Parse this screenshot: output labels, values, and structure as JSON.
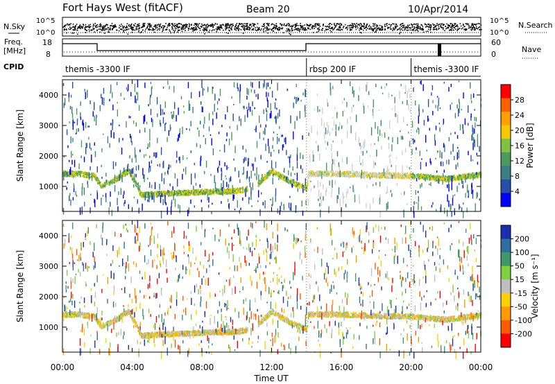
{
  "header": {
    "title": "Fort Hays West (fitACF)",
    "beam": "Beam 20",
    "date": "10/Apr/2014"
  },
  "strips": {
    "nsky_label": "N.Sky",
    "nsky_ticks": [
      "10^5",
      "10^0"
    ],
    "nsearch_label": "N.Search",
    "nsearch_ticks": [
      "10^5",
      "10^0"
    ],
    "freq_label_1": "Freq.",
    "freq_label_2": "[MHz]",
    "freq_ticks": [
      "18",
      "8"
    ],
    "nave_label": "Nave",
    "nave_ticks": [
      "60",
      "0"
    ],
    "cpid_label": "CPID"
  },
  "cpid_segments": [
    {
      "label": "themis -3300 IF",
      "start_h": 0,
      "end_h": 14
    },
    {
      "label": "rbsp 200 IF",
      "start_h": 14,
      "end_h": 20
    },
    {
      "label": "themis -3300 IF",
      "start_h": 20,
      "end_h": 24
    }
  ],
  "chart_data": [
    {
      "type": "heatmap",
      "name": "power-panel",
      "xlabel": "Time UT",
      "ylabel": "Slant Range [km]",
      "x_ticks": [
        "00:00",
        "04:00",
        "08:00",
        "12:00",
        "16:00",
        "20:00",
        "00:00"
      ],
      "x_tick_hours": [
        0,
        4,
        8,
        12,
        16,
        20,
        24
      ],
      "xlim": [
        0,
        24
      ],
      "ylim": [
        180,
        4500
      ],
      "y_ticks": [
        1000,
        2000,
        3000,
        4000
      ],
      "colorbar": {
        "label": "Power [dB]",
        "ticks": [
          4,
          8,
          12,
          16,
          20,
          24,
          28
        ],
        "range": [
          0,
          32
        ],
        "colors": [
          "#0000ff",
          "#2a4fa8",
          "#3a7f88",
          "#4d9a5e",
          "#7fc144",
          "#f5c800",
          "#ffa000",
          "#ff6000",
          "#ff0000"
        ]
      },
      "echo_band": [
        {
          "h": 0.0,
          "range": 1450
        },
        {
          "h": 1.0,
          "range": 1440
        },
        {
          "h": 1.8,
          "range": 1380
        },
        {
          "h": 2.2,
          "range": 1050
        },
        {
          "h": 3.0,
          "range": 1250
        },
        {
          "h": 3.8,
          "range": 1550
        },
        {
          "h": 4.5,
          "range": 750
        },
        {
          "h": 6.0,
          "range": 800
        },
        {
          "h": 8.0,
          "range": 850
        },
        {
          "h": 10.0,
          "range": 880
        },
        {
          "h": 11.0,
          "range": 1000
        },
        {
          "h": 12.0,
          "range": 1550
        },
        {
          "h": 13.0,
          "range": 1200
        },
        {
          "h": 14.0,
          "range": 950
        },
        {
          "h": 14.1,
          "range": 1450
        },
        {
          "h": 16.0,
          "range": 1450
        },
        {
          "h": 18.0,
          "range": 1400
        },
        {
          "h": 20.0,
          "range": 1380
        },
        {
          "h": 22.0,
          "range": 1280
        },
        {
          "h": 24.0,
          "range": 1420
        }
      ]
    },
    {
      "type": "heatmap",
      "name": "velocity-panel",
      "xlabel": "Time UT",
      "ylabel": "Slant Range [km]",
      "x_ticks": [
        "00:00",
        "04:00",
        "08:00",
        "12:00",
        "16:00",
        "20:00",
        "00:00"
      ],
      "x_tick_hours": [
        0,
        4,
        8,
        12,
        16,
        20,
        24
      ],
      "xlim": [
        0,
        24
      ],
      "ylim": [
        180,
        4500
      ],
      "y_ticks": [
        1000,
        2000,
        3000,
        4000
      ],
      "colorbar": {
        "label": "Velocity [m s⁻¹]",
        "ticks": [
          "200",
          "100",
          "50",
          "15",
          "-15",
          "-50",
          "-100",
          "-200"
        ],
        "colors": [
          "#1a2fb0",
          "#2f6fa0",
          "#3f9a6a",
          "#7fcf3f",
          "#bfbfbf",
          "#ffd000",
          "#ff9a00",
          "#ff5a00",
          "#ff0000"
        ]
      }
    }
  ]
}
